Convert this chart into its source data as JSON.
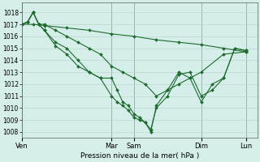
{
  "background_color": "#d6eeea",
  "grid_color": "#b8d8d0",
  "line_color": "#1e6b2e",
  "xlabel": "Pression niveau de la mer( hPa )",
  "ylim": [
    1007.5,
    1018.8
  ],
  "yticks": [
    1008,
    1009,
    1010,
    1011,
    1012,
    1013,
    1014,
    1015,
    1016,
    1017,
    1018
  ],
  "xtick_labels": [
    "Ven",
    "Mar",
    "Sam",
    "Dim",
    "Lun"
  ],
  "xtick_positions": [
    0,
    48,
    60,
    96,
    120
  ],
  "xlim": [
    0,
    126
  ],
  "lines": [
    {
      "x": [
        0,
        6,
        12,
        24,
        36,
        48,
        60,
        72,
        84,
        96,
        108,
        120
      ],
      "y": [
        1017.0,
        1017.0,
        1016.9,
        1016.7,
        1016.5,
        1016.2,
        1016.0,
        1015.7,
        1015.5,
        1015.3,
        1015.0,
        1014.7
      ]
    },
    {
      "x": [
        0,
        3,
        6,
        9,
        12,
        18,
        24,
        30,
        36,
        42,
        48,
        54,
        60,
        66,
        72,
        78,
        84,
        90,
        96,
        108,
        120
      ],
      "y": [
        1017.0,
        1017.2,
        1018.0,
        1017.0,
        1017.0,
        1016.5,
        1016.0,
        1015.5,
        1015.0,
        1014.5,
        1013.5,
        1013.0,
        1012.5,
        1012.0,
        1011.0,
        1011.5,
        1012.0,
        1012.5,
        1013.0,
        1014.5,
        1014.7
      ]
    },
    {
      "x": [
        0,
        3,
        6,
        9,
        12,
        18,
        24,
        30,
        36,
        42,
        48,
        51,
        54,
        57,
        60,
        63,
        66,
        69,
        72,
        78,
        84,
        90,
        96,
        102,
        108,
        114,
        120
      ],
      "y": [
        1017.0,
        1017.2,
        1018.0,
        1017.0,
        1016.5,
        1015.5,
        1015.0,
        1014.0,
        1013.0,
        1012.5,
        1011.0,
        1010.5,
        1010.2,
        1009.8,
        1009.2,
        1009.0,
        1008.8,
        1008.2,
        1010.0,
        1011.0,
        1012.8,
        1013.0,
        1011.0,
        1011.5,
        1012.5,
        1015.0,
        1014.8
      ]
    },
    {
      "x": [
        0,
        3,
        6,
        9,
        12,
        18,
        24,
        30,
        36,
        42,
        48,
        51,
        54,
        57,
        60,
        63,
        66,
        69,
        72,
        78,
        84,
        90,
        96,
        102,
        108,
        114,
        120
      ],
      "y": [
        1017.0,
        1017.2,
        1018.0,
        1017.0,
        1016.5,
        1015.2,
        1014.5,
        1013.5,
        1013.0,
        1012.5,
        1012.5,
        1011.5,
        1010.5,
        1010.2,
        1009.5,
        1009.2,
        1008.8,
        1008.0,
        1010.2,
        1011.5,
        1013.0,
        1012.5,
        1010.5,
        1012.0,
        1012.5,
        1015.0,
        1014.8
      ]
    }
  ]
}
